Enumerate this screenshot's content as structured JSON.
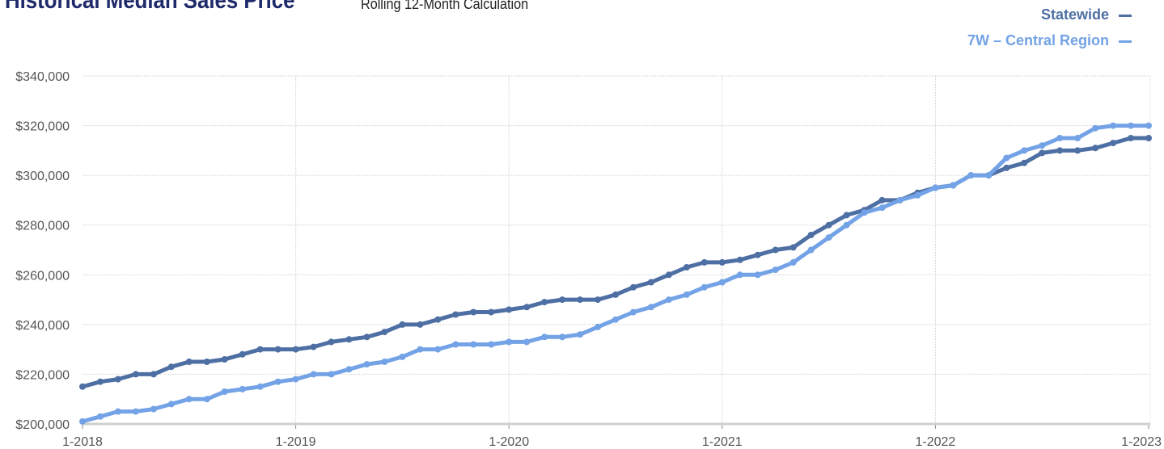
{
  "title": "Historical Median Sales Price",
  "subtitle": "Rolling 12-Month Calculation",
  "colors": {
    "statewide": "#4e6fa3",
    "region": "#73a3e6",
    "grid": "#d0d0d0",
    "axis": "#cfcfcf"
  },
  "chart_data": {
    "type": "line",
    "title": "Historical Median Sales Price",
    "subtitle": "Rolling 12-Month Calculation",
    "xlabel": "",
    "ylabel": "",
    "x_tick_labels": [
      "1-2018",
      "1-2019",
      "1-2020",
      "1-2021",
      "1-2022",
      "1-2023"
    ],
    "y_tick_labels": [
      "$200,000",
      "$220,000",
      "$240,000",
      "$260,000",
      "$280,000",
      "$300,000",
      "$320,000",
      "$340,000"
    ],
    "ylim": [
      200000,
      340000
    ],
    "y_ticks": [
      200000,
      220000,
      240000,
      260000,
      280000,
      300000,
      320000,
      340000
    ],
    "x": [
      "1-2018",
      "2-2018",
      "3-2018",
      "4-2018",
      "5-2018",
      "6-2018",
      "7-2018",
      "8-2018",
      "9-2018",
      "10-2018",
      "11-2018",
      "12-2018",
      "1-2019",
      "2-2019",
      "3-2019",
      "4-2019",
      "5-2019",
      "6-2019",
      "7-2019",
      "8-2019",
      "9-2019",
      "10-2019",
      "11-2019",
      "12-2019",
      "1-2020",
      "2-2020",
      "3-2020",
      "4-2020",
      "5-2020",
      "6-2020",
      "7-2020",
      "8-2020",
      "9-2020",
      "10-2020",
      "11-2020",
      "12-2020",
      "1-2021",
      "2-2021",
      "3-2021",
      "4-2021",
      "5-2021",
      "6-2021",
      "7-2021",
      "8-2021",
      "9-2021",
      "10-2021",
      "11-2021",
      "12-2021",
      "1-2022",
      "2-2022",
      "3-2022",
      "4-2022",
      "5-2022",
      "6-2022",
      "7-2022",
      "8-2022",
      "9-2022",
      "10-2022",
      "11-2022",
      "12-2022",
      "1-2023"
    ],
    "grid": true,
    "legend_position": "top-right",
    "series": [
      {
        "name": "Statewide",
        "color": "#4e6fa3",
        "values": [
          215000,
          217000,
          218000,
          220000,
          220000,
          223000,
          225000,
          225000,
          226000,
          228000,
          230000,
          230000,
          230000,
          231000,
          233000,
          234000,
          235000,
          237000,
          240000,
          240000,
          242000,
          244000,
          245000,
          245000,
          246000,
          247000,
          249000,
          250000,
          250000,
          250000,
          252000,
          255000,
          257000,
          260000,
          263000,
          265000,
          265000,
          266000,
          268000,
          270000,
          271000,
          276000,
          280000,
          284000,
          286000,
          290000,
          290000,
          293000,
          295000,
          296000,
          300000,
          300000,
          303000,
          305000,
          309000,
          310000,
          310000,
          311000,
          313000,
          315000,
          315000
        ]
      },
      {
        "name": "7W – Central Region",
        "color": "#73a3e6",
        "values": [
          201000,
          203000,
          205000,
          205000,
          206000,
          208000,
          210000,
          210000,
          213000,
          214000,
          215000,
          217000,
          218000,
          220000,
          220000,
          222000,
          224000,
          225000,
          227000,
          230000,
          230000,
          232000,
          232000,
          232000,
          233000,
          233000,
          235000,
          235000,
          236000,
          239000,
          242000,
          245000,
          247000,
          250000,
          252000,
          255000,
          257000,
          260000,
          260000,
          262000,
          265000,
          270000,
          275000,
          280000,
          285000,
          287000,
          290000,
          292000,
          295000,
          296000,
          300000,
          300000,
          307000,
          310000,
          312000,
          315000,
          315000,
          319000,
          320000,
          320000,
          320000
        ]
      }
    ]
  }
}
